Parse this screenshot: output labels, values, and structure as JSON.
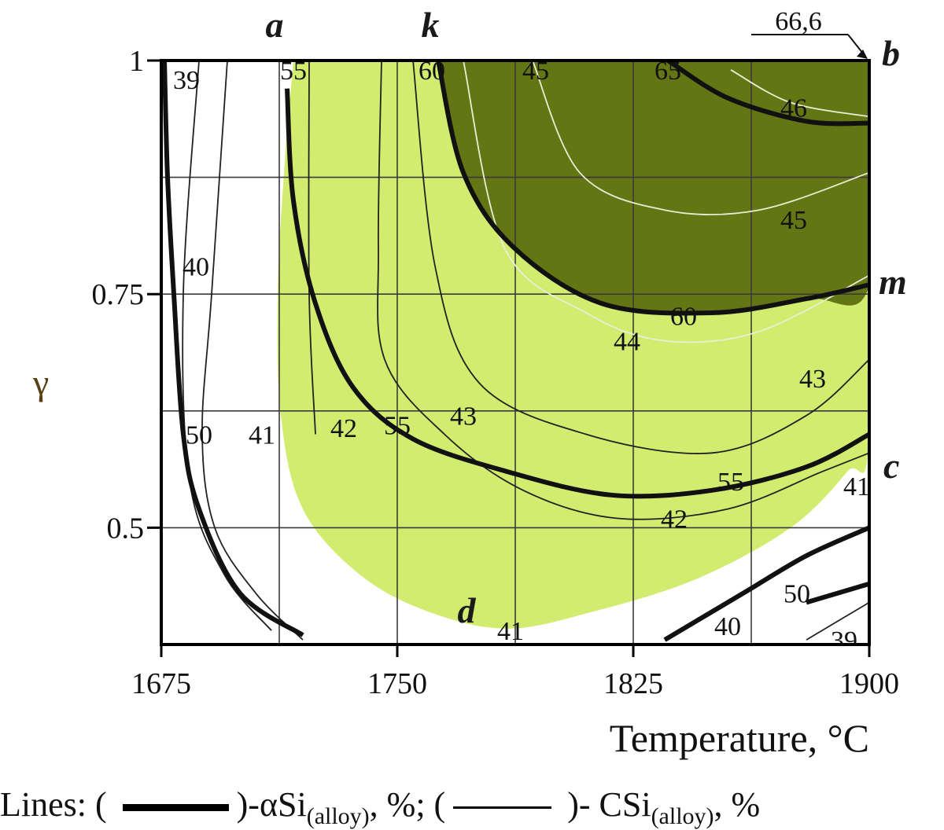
{
  "chart_data": {
    "type": "contour",
    "xlabel": "Temperature, °C",
    "ylabel": "γ",
    "xlim": [
      1675,
      1900
    ],
    "ylim": [
      0.375,
      1.0
    ],
    "x_ticks": [
      "1675",
      "1750",
      "1825",
      "1900"
    ],
    "y_ticks": [
      "0.5",
      "0.75",
      "1"
    ],
    "grid": true,
    "regions": [
      {
        "name": "light",
        "color": "#d1ec6f"
      },
      {
        "name": "dark",
        "color": "#637613"
      }
    ],
    "thick_contours": [
      {
        "level": 50,
        "label": "50",
        "points": [
          [
            1676,
            1.0
          ],
          [
            1677,
            0.875
          ],
          [
            1679,
            0.75
          ],
          [
            1682,
            0.6
          ],
          [
            1687,
            0.52
          ],
          [
            1700,
            0.43
          ],
          [
            1720,
            0.385
          ]
        ]
      },
      {
        "level": 55,
        "label": "55",
        "points": [
          [
            1715,
            0.97
          ],
          [
            1717,
            0.85
          ],
          [
            1724,
            0.74
          ],
          [
            1736,
            0.65
          ],
          [
            1755,
            0.595
          ],
          [
            1785,
            0.56
          ],
          [
            1818,
            0.535
          ],
          [
            1850,
            0.54
          ],
          [
            1880,
            0.565
          ],
          [
            1900,
            0.6
          ]
        ]
      },
      {
        "level": 60,
        "label": "60",
        "points": [
          [
            1763,
            1.0
          ],
          [
            1771,
            0.88
          ],
          [
            1787,
            0.8
          ],
          [
            1815,
            0.74
          ],
          [
            1850,
            0.73
          ],
          [
            1880,
            0.745
          ],
          [
            1900,
            0.76
          ]
        ]
      },
      {
        "level": 65,
        "label": "65",
        "points": [
          [
            1836,
            1.0
          ],
          [
            1855,
            0.96
          ],
          [
            1880,
            0.935
          ],
          [
            1900,
            0.933
          ]
        ]
      },
      {
        "level": 40,
        "label": "40",
        "points": [
          [
            1835,
            0.38
          ],
          [
            1860,
            0.43
          ],
          [
            1880,
            0.47
          ],
          [
            1900,
            0.5
          ]
        ]
      },
      {
        "level": 50,
        "label": "50",
        "points": [
          [
            1880,
            0.42
          ],
          [
            1900,
            0.44
          ]
        ]
      }
    ],
    "thin_contours": [
      {
        "level": 39,
        "label": "39",
        "points": [
          [
            1687,
            1.0
          ],
          [
            1682,
            0.75
          ],
          [
            1684,
            0.55
          ],
          [
            1695,
            0.45
          ],
          [
            1710,
            0.39
          ]
        ]
      },
      {
        "level": 40,
        "label": "40",
        "points": [
          [
            1696,
            1.0
          ],
          [
            1691,
            0.75
          ],
          [
            1688,
            0.6
          ],
          [
            1692,
            0.5
          ],
          [
            1705,
            0.43
          ],
          [
            1720,
            0.38
          ]
        ]
      },
      {
        "level": 41,
        "label": "41",
        "points": [
          [
            1722,
            1.0
          ],
          [
            1722,
            0.75
          ],
          [
            1724,
            0.6
          ]
        ]
      },
      {
        "level": 42,
        "label": "42",
        "points": [
          [
            1745,
            1.0
          ],
          [
            1744,
            0.8
          ],
          [
            1746,
            0.68
          ],
          [
            1765,
            0.6
          ],
          [
            1790,
            0.54
          ],
          [
            1820,
            0.51
          ],
          [
            1855,
            0.52
          ],
          [
            1885,
            0.56
          ],
          [
            1900,
            0.58
          ]
        ]
      },
      {
        "level": 43,
        "label": "43",
        "points": [
          [
            1755,
            1.0
          ],
          [
            1762,
            0.78
          ],
          [
            1776,
            0.655
          ],
          [
            1810,
            0.6
          ],
          [
            1850,
            0.58
          ],
          [
            1880,
            0.62
          ],
          [
            1900,
            0.68
          ]
        ]
      },
      {
        "level": 44,
        "label": "44",
        "points": [
          [
            1771,
            1.0
          ],
          [
            1784,
            0.8
          ],
          [
            1810,
            0.73
          ],
          [
            1835,
            0.7
          ],
          [
            1865,
            0.71
          ],
          [
            1900,
            0.77
          ]
        ]
      },
      {
        "level": 45,
        "label": "45",
        "points": [
          [
            1793,
            1.0
          ],
          [
            1808,
            0.88
          ],
          [
            1835,
            0.84
          ],
          [
            1865,
            0.84
          ],
          [
            1900,
            0.88
          ]
        ]
      },
      {
        "level": 46,
        "label": "46",
        "points": [
          [
            1856,
            0.99
          ],
          [
            1875,
            0.955
          ],
          [
            1900,
            0.94
          ]
        ]
      },
      {
        "level": 39,
        "label": "39",
        "points": [
          [
            1880,
            0.38
          ],
          [
            1900,
            0.42
          ]
        ]
      }
    ],
    "contour_labels": [
      {
        "text": "39",
        "x": 1683,
        "y": 0.98
      },
      {
        "text": "40",
        "x": 1686,
        "y": 0.78
      },
      {
        "text": "50",
        "x": 1687,
        "y": 0.6
      },
      {
        "text": "55",
        "x": 1717,
        "y": 0.99
      },
      {
        "text": "41",
        "x": 1707,
        "y": 0.6
      },
      {
        "text": "42",
        "x": 1733,
        "y": 0.607
      },
      {
        "text": "55",
        "x": 1750,
        "y": 0.61
      },
      {
        "text": "43",
        "x": 1771,
        "y": 0.62
      },
      {
        "text": "60",
        "x": 1761,
        "y": 0.99
      },
      {
        "text": "45",
        "x": 1794,
        "y": 0.99
      },
      {
        "text": "65",
        "x": 1836,
        "y": 0.99
      },
      {
        "text": "46",
        "x": 1876,
        "y": 0.95
      },
      {
        "text": "45",
        "x": 1876,
        "y": 0.83
      },
      {
        "text": "60",
        "x": 1841,
        "y": 0.727
      },
      {
        "text": "44",
        "x": 1823,
        "y": 0.7
      },
      {
        "text": "43",
        "x": 1882,
        "y": 0.66
      },
      {
        "text": "55",
        "x": 1856,
        "y": 0.55
      },
      {
        "text": "42",
        "x": 1838,
        "y": 0.51
      },
      {
        "text": "41",
        "x": 1896,
        "y": 0.545
      },
      {
        "text": "41",
        "x": 1786,
        "y": 0.39
      },
      {
        "text": "50",
        "x": 1877,
        "y": 0.43
      },
      {
        "text": "40",
        "x": 1855,
        "y": 0.395
      },
      {
        "text": "39",
        "x": 1892,
        "y": 0.38
      }
    ],
    "points": [
      {
        "label": "a",
        "x": 1712,
        "y": 1.0
      },
      {
        "label": "k",
        "x": 1762,
        "y": 1.0
      },
      {
        "label": "b",
        "x": 1900,
        "y": 1.0
      },
      {
        "label": "m",
        "x": 1900,
        "y": 0.75
      },
      {
        "label": "c",
        "x": 1900,
        "y": 0.565
      },
      {
        "label": "d",
        "x": 1772,
        "y": 0.39
      }
    ],
    "annotation": {
      "text": "66,6",
      "target": "b"
    }
  },
  "legend": {
    "prefix": "Lines: (",
    "alpha_part": ")-αSi",
    "sub_alloy": "(alloy)",
    "alpha_unit": ", %; (",
    "c_part": ")- CSi",
    "c_unit": ", %"
  }
}
